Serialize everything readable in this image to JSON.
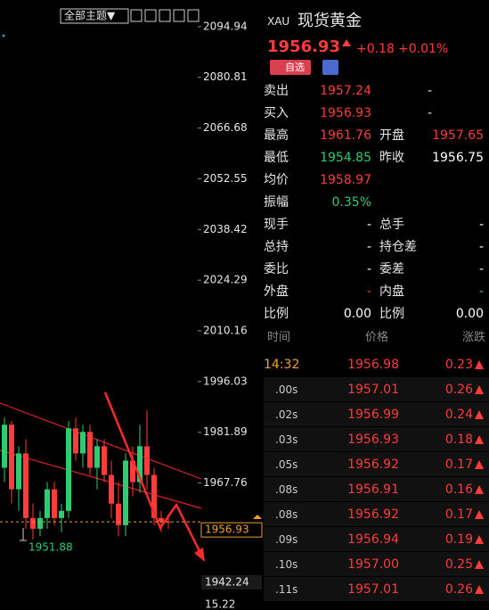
{
  "toolbar": {
    "theme_button": "全部主题▼"
  },
  "chart": {
    "ylim": [
      1932.36,
      2102.37
    ],
    "yticks": [
      2094.94,
      2080.81,
      2066.68,
      2052.55,
      2038.42,
      2024.29,
      2010.16,
      1996.03,
      1981.89,
      1967.76
    ],
    "current_price": 1956.93,
    "lower_price": 1942.24,
    "volume_label": 15.22,
    "low_label": 1951.88,
    "up_color": "#2ecc71",
    "down_color": "#ff3b3b",
    "candles": [
      {
        "open": 1972,
        "high": 1986,
        "low": 1968,
        "close": 1984
      },
      {
        "open": 1984,
        "high": 1985,
        "low": 1962,
        "close": 1966
      },
      {
        "open": 1966,
        "high": 1978,
        "low": 1960,
        "close": 1976
      },
      {
        "open": 1976,
        "high": 1980,
        "low": 1955,
        "close": 1958
      },
      {
        "open": 1958,
        "high": 1962,
        "low": 1952,
        "close": 1955
      },
      {
        "open": 1955,
        "high": 1960,
        "low": 1953,
        "close": 1958
      },
      {
        "open": 1958,
        "high": 1968,
        "low": 1955,
        "close": 1966
      },
      {
        "open": 1966,
        "high": 1968,
        "low": 1956,
        "close": 1958
      },
      {
        "open": 1958,
        "high": 1962,
        "low": 1954,
        "close": 1960
      },
      {
        "open": 1960,
        "high": 1985,
        "low": 1958,
        "close": 1983
      },
      {
        "open": 1983,
        "high": 1986,
        "low": 1974,
        "close": 1976
      },
      {
        "open": 1976,
        "high": 1984,
        "low": 1972,
        "close": 1982
      },
      {
        "open": 1982,
        "high": 1984,
        "low": 1970,
        "close": 1972
      },
      {
        "open": 1972,
        "high": 1980,
        "low": 1966,
        "close": 1978
      },
      {
        "open": 1978,
        "high": 1980,
        "low": 1968,
        "close": 1970
      },
      {
        "open": 1970,
        "high": 1974,
        "low": 1958,
        "close": 1962
      },
      {
        "open": 1962,
        "high": 1968,
        "low": 1953,
        "close": 1956
      },
      {
        "open": 1956,
        "high": 1976,
        "low": 1953,
        "close": 1974
      },
      {
        "open": 1974,
        "high": 1978,
        "low": 1964,
        "close": 1968
      },
      {
        "open": 1968,
        "high": 1984,
        "low": 1965,
        "close": 1978
      },
      {
        "open": 1978,
        "high": 1988,
        "low": 1966,
        "close": 1970
      },
      {
        "open": 1970,
        "high": 1972,
        "low": 1956,
        "close": 1958
      },
      {
        "open": 1958,
        "high": 1960,
        "low": 1954,
        "close": 1957
      },
      {
        "open": 1957,
        "high": 1958,
        "low": 1955,
        "close": 1956.93
      }
    ]
  },
  "header": {
    "symbol": "XAU",
    "name": "现货黄金",
    "price": "1956.93",
    "change": "+0.18",
    "change_pct": "+0.01%",
    "watch_button": "自选"
  },
  "quote": [
    {
      "label": "卖出",
      "value": "1957.24",
      "color": "#ff3b3b",
      "extra": "-"
    },
    {
      "label": "买入",
      "value": "1956.93",
      "color": "#ff3b3b",
      "extra": "-"
    },
    {
      "label": "最高",
      "value": "1961.76",
      "color": "#ff3b3b",
      "label2": "开盘",
      "value2": "1957.65",
      "color2": "#ff3b3b"
    },
    {
      "label": "最低",
      "value": "1954.85",
      "color": "#2ecc71",
      "label2": "昨收",
      "value2": "1956.75",
      "color2": "#ffffff"
    },
    {
      "label": "均价",
      "value": "1958.97",
      "color": "#ff3b3b"
    },
    {
      "label": "振幅",
      "value": "0.35%",
      "color": "#2ecc71"
    },
    {
      "label": "现手",
      "value": "-",
      "color": "#ffffff",
      "label2": "总手",
      "value2": "-",
      "color2": "#ffffff"
    },
    {
      "label": "总持",
      "value": "-",
      "color": "#ffffff",
      "label2": "持仓差",
      "value2": "-",
      "color2": "#ffffff"
    },
    {
      "label": "委比",
      "value": "-",
      "color": "#ffffff",
      "label2": "委差",
      "value2": "-",
      "color2": "#ffffff"
    },
    {
      "label": "外盘",
      "value": "-",
      "color": "#ff3b3b",
      "label2": "内盘",
      "value2": "-",
      "color2": "#2ecc71"
    },
    {
      "label": "比例",
      "value": "0.00",
      "color": "#ffffff",
      "label2": "比例",
      "value2": "0.00",
      "color2": "#ffffff"
    }
  ],
  "ticks_table": {
    "headers": [
      "时间",
      "价格",
      "涨跌"
    ],
    "rows": [
      [
        "14:32",
        "1956.98",
        "0.23"
      ],
      [
        ".00s",
        "1957.01",
        "0.26"
      ],
      [
        ".02s",
        "1956.99",
        "0.24"
      ],
      [
        ".03s",
        "1956.93",
        "0.18"
      ],
      [
        ".05s",
        "1956.92",
        "0.17"
      ],
      [
        ".08s",
        "1956.91",
        "0.16"
      ],
      [
        ".08s",
        "1956.92",
        "0.17"
      ],
      [
        ".09s",
        "1956.94",
        "0.19"
      ],
      [
        ".10s",
        "1957.00",
        "0.25"
      ],
      [
        ".11s",
        "1957.01",
        "0.26"
      ]
    ]
  }
}
